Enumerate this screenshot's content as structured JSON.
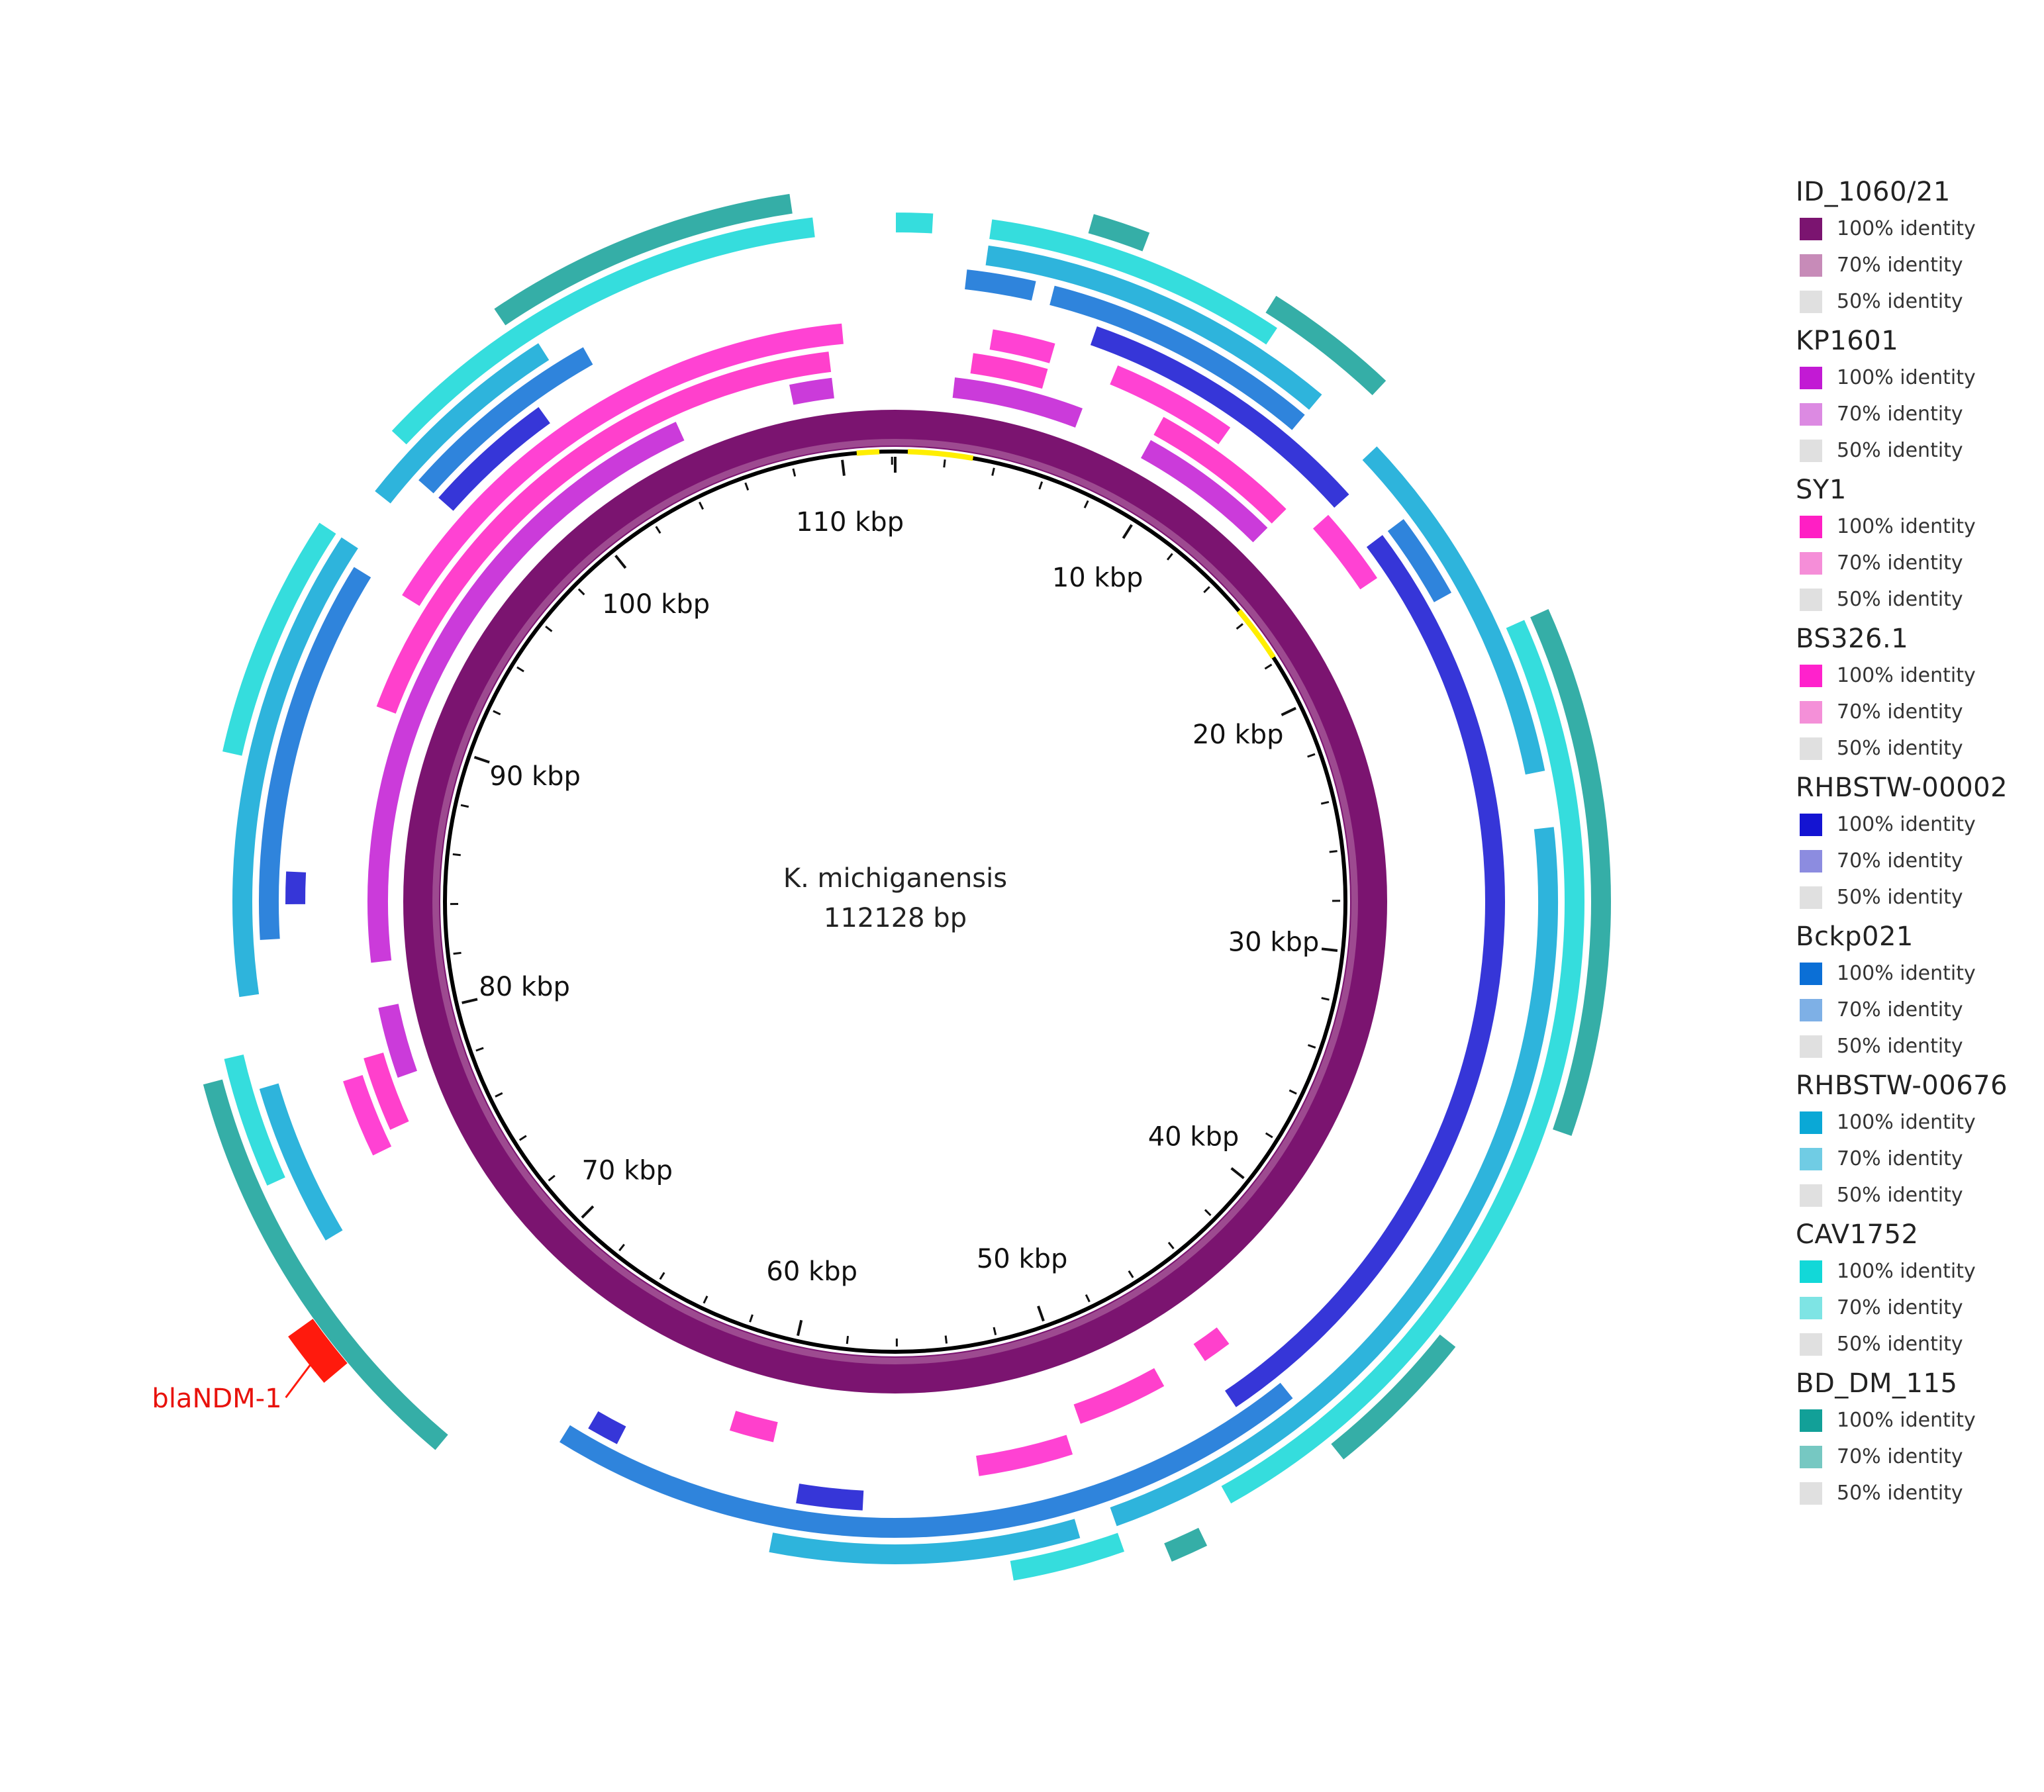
{
  "diagram": {
    "center_title": "K. michiganensis",
    "center_subtitle": "112128 bp",
    "genome_length_bp": 112128,
    "tick_labels": [
      "10 kbp",
      "20 kbp",
      "30 kbp",
      "40 kbp",
      "50 kbp",
      "60 kbp",
      "70 kbp",
      "80 kbp",
      "90 kbp",
      "100 kbp",
      "110 kbp"
    ],
    "tick_positions_kbp": [
      10,
      20,
      30,
      40,
      50,
      60,
      70,
      80,
      90,
      100,
      110
    ],
    "gene_annotation": {
      "label": "blaNDM-1",
      "position_kbp": 72.3,
      "color": "#ff1a0d"
    },
    "highlight_color": "#ffee00",
    "highlights_kbp": [
      [
        110.6,
        111.5
      ],
      [
        0.5,
        3.1
      ],
      [
        15.5,
        17.8
      ]
    ]
  },
  "legend": {
    "groups": [
      {
        "name": "ID_1060/21",
        "colors": [
          "#7b1470",
          "#c78bb8",
          "#e0e0e0"
        ],
        "levels": [
          "100% identity",
          "70% identity",
          "50% identity"
        ]
      },
      {
        "name": "KP1601",
        "colors": [
          "#c21ad4",
          "#dc8ae2",
          "#e0e0e0"
        ],
        "levels": [
          "100% identity",
          "70% identity",
          "50% identity"
        ]
      },
      {
        "name": "SY1",
        "colors": [
          "#ff1fc4",
          "#f58ed8",
          "#e0e0e0"
        ],
        "levels": [
          "100% identity",
          "70% identity",
          "50% identity"
        ]
      },
      {
        "name": "BS326.1",
        "colors": [
          "#ff22cc",
          "#f490d8",
          "#e0e0e0"
        ],
        "levels": [
          "100% identity",
          "70% identity",
          "50% identity"
        ]
      },
      {
        "name": "RHBSTW-00002",
        "colors": [
          "#1414d2",
          "#8c8ce0",
          "#e0e0e0"
        ],
        "levels": [
          "100% identity",
          "70% identity",
          "50% identity"
        ]
      },
      {
        "name": "Bckp021",
        "colors": [
          "#0b6fd6",
          "#7eb0e6",
          "#e0e0e0"
        ],
        "levels": [
          "100% identity",
          "70% identity",
          "50% identity"
        ]
      },
      {
        "name": "RHBSTW-00676",
        "colors": [
          "#0aa8d6",
          "#70cce4",
          "#e0e0e0"
        ],
        "levels": [
          "100% identity",
          "70% identity",
          "50% identity"
        ]
      },
      {
        "name": "CAV1752",
        "colors": [
          "#12d8d8",
          "#7ee4e4",
          "#e0e0e0"
        ],
        "levels": [
          "100% identity",
          "70% identity",
          "50% identity"
        ]
      },
      {
        "name": "BD_DM_115",
        "colors": [
          "#12a098",
          "#76c8c2",
          "#e0e0e0"
        ],
        "levels": [
          "100% identity",
          "70% identity",
          "50% identity"
        ]
      }
    ]
  },
  "rings": [
    {
      "name": "ID_1060/21",
      "color": "#7b1470",
      "segments_kbp": [
        [
          0,
          112.128
        ]
      ]
    },
    {
      "name": "KP1601",
      "color": "#c21ad4",
      "segments_kbp": [
        [
          2.0,
          6.5
        ],
        [
          9.0,
          14.0
        ],
        [
          78.0,
          80.5
        ],
        [
          82.0,
          104.5
        ],
        [
          108.5,
          110.0
        ]
      ]
    },
    {
      "name": "SY1",
      "color": "#ff1fc4",
      "segments_kbp": [
        [
          2.5,
          5.0
        ],
        [
          9.0,
          14.0
        ],
        [
          44.5,
          45.5
        ],
        [
          47.0,
          50.0
        ],
        [
          60.0,
          61.5
        ],
        [
          76.5,
          79.0
        ],
        [
          90.5,
          110.0
        ]
      ]
    },
    {
      "name": "BS326.1",
      "color": "#ff22cc",
      "segments_kbp": [
        [
          3.0,
          5.0
        ],
        [
          7.0,
          11.0
        ],
        [
          15.0,
          17.5
        ],
        [
          50.5,
          53.5
        ],
        [
          76.0,
          78.5
        ],
        [
          94.0,
          110.5
        ]
      ]
    },
    {
      "name": "RHBSTW-00002",
      "color": "#1414d2",
      "segments_kbp": [
        [
          6.0,
          15.0
        ],
        [
          16.5,
          45.5
        ],
        [
          57.0,
          59.0
        ],
        [
          64.5,
          65.5
        ],
        [
          84.0,
          85.0
        ],
        [
          97.0,
          101.0
        ]
      ]
    },
    {
      "name": "Bckp021",
      "color": "#0b6fd6",
      "segments_kbp": [
        [
          2.0,
          4.0
        ],
        [
          4.5,
          12.5
        ],
        [
          16.5,
          19.0
        ],
        [
          44.0,
          66.0
        ],
        [
          83.0,
          94.0
        ],
        [
          97.0,
          103.0
        ]
      ]
    },
    {
      "name": "RHBSTW-00676",
      "color": "#0aa8d6",
      "segments_kbp": [
        [
          2.5,
          12.5
        ],
        [
          14.5,
          24.5
        ],
        [
          26.0,
          50.0
        ],
        [
          51.0,
          59.5
        ],
        [
          74.5,
          79.0
        ],
        [
          81.5,
          94.5
        ],
        [
          96.0,
          102.0
        ]
      ]
    },
    {
      "name": "CAV1752",
      "color": "#12d8d8",
      "segments_kbp": [
        [
          0.0,
          1.0
        ],
        [
          2.5,
          10.5
        ],
        [
          20.5,
          47.0
        ],
        [
          50.0,
          53.0
        ],
        [
          76.5,
          80.0
        ],
        [
          88.0,
          94.5
        ],
        [
          97.5,
          110.0
        ]
      ]
    },
    {
      "name": "BD_DM_115",
      "color": "#12a098",
      "segments_kbp": [
        [
          5.0,
          6.5
        ],
        [
          10.0,
          13.5
        ],
        [
          20.5,
          34.0
        ],
        [
          40.0,
          44.0
        ],
        [
          48.0,
          49.0
        ],
        [
          68.5,
          79.5
        ],
        [
          101.5,
          109.5
        ]
      ]
    }
  ]
}
